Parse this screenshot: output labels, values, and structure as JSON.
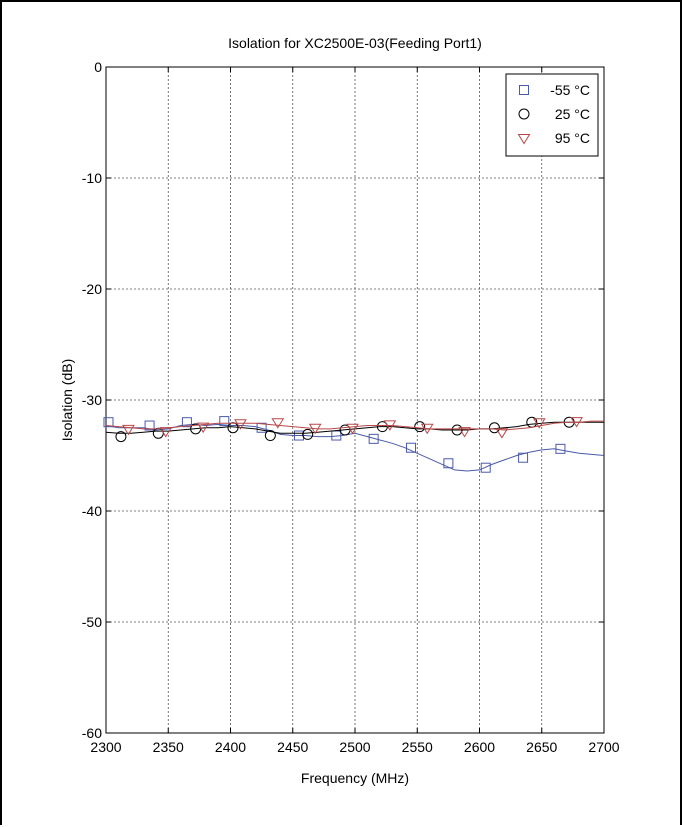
{
  "chart_data": {
    "type": "line",
    "title": "Isolation for XC2500E-03(Feeding Port1)",
    "xlabel": "Frequency (MHz)",
    "ylabel": "Isolation (dB)",
    "xlim": [
      2300,
      2700
    ],
    "ylim": [
      -60,
      0
    ],
    "xticks": [
      2300,
      2350,
      2400,
      2450,
      2500,
      2550,
      2600,
      2650,
      2700
    ],
    "yticks": [
      0,
      -10,
      -20,
      -30,
      -40,
      -50,
      -60
    ],
    "grid": true,
    "legend_position": "top-right",
    "series": [
      {
        "name": "-55 °C",
        "marker": "square",
        "color": "#4a5aa8",
        "line": {
          "x": [
            2300,
            2310,
            2320,
            2330,
            2340,
            2350,
            2360,
            2370,
            2380,
            2390,
            2400,
            2410,
            2420,
            2430,
            2440,
            2450,
            2460,
            2470,
            2480,
            2490,
            2500,
            2510,
            2520,
            2530,
            2540,
            2550,
            2560,
            2570,
            2580,
            2590,
            2600,
            2610,
            2620,
            2630,
            2640,
            2650,
            2660,
            2670,
            2680,
            2690,
            2700
          ],
          "y": [
            -32.3,
            -32.5,
            -32.5,
            -32.5,
            -32.7,
            -32.6,
            -32.3,
            -32.2,
            -32.3,
            -32.2,
            -32.3,
            -32.3,
            -32.4,
            -32.7,
            -33.1,
            -33.2,
            -33.2,
            -33.3,
            -33.3,
            -33.2,
            -33.0,
            -33.3,
            -33.6,
            -33.9,
            -34.3,
            -34.8,
            -35.3,
            -35.8,
            -36.3,
            -36.4,
            -36.3,
            -35.8,
            -35.4,
            -35.0,
            -34.7,
            -34.5,
            -34.4,
            -34.6,
            -34.8,
            -34.9,
            -35.0
          ]
        },
        "markers": {
          "x": [
            2302,
            2335,
            2365,
            2395,
            2425,
            2455,
            2485,
            2515,
            2545,
            2575,
            2605,
            2635,
            2665
          ],
          "y": [
            -32.0,
            -32.3,
            -32.0,
            -31.9,
            -32.5,
            -33.2,
            -33.2,
            -33.5,
            -34.3,
            -35.7,
            -36.1,
            -35.2,
            -34.4
          ]
        }
      },
      {
        "name": "25 °C",
        "marker": "circle",
        "color": "#000000",
        "line": {
          "x": [
            2300,
            2310,
            2320,
            2330,
            2340,
            2350,
            2360,
            2370,
            2380,
            2390,
            2400,
            2410,
            2420,
            2430,
            2440,
            2450,
            2460,
            2470,
            2480,
            2490,
            2500,
            2510,
            2520,
            2530,
            2540,
            2550,
            2560,
            2570,
            2580,
            2590,
            2600,
            2610,
            2620,
            2630,
            2640,
            2650,
            2660,
            2670,
            2680,
            2690,
            2700
          ],
          "y": [
            -32.9,
            -33.0,
            -33.0,
            -32.9,
            -32.8,
            -32.8,
            -32.7,
            -32.6,
            -32.5,
            -32.5,
            -32.4,
            -32.5,
            -32.6,
            -32.8,
            -33.0,
            -33.0,
            -33.0,
            -32.9,
            -32.8,
            -32.7,
            -32.6,
            -32.5,
            -32.4,
            -32.4,
            -32.5,
            -32.6,
            -32.6,
            -32.7,
            -32.7,
            -32.7,
            -32.6,
            -32.6,
            -32.5,
            -32.4,
            -32.2,
            -32.1,
            -32.0,
            -32.0,
            -32.0,
            -32.0,
            -32.0
          ]
        },
        "markers": {
          "x": [
            2312,
            2342,
            2372,
            2402,
            2432,
            2462,
            2492,
            2522,
            2552,
            2582,
            2612,
            2642,
            2672
          ],
          "y": [
            -33.3,
            -33.0,
            -32.6,
            -32.5,
            -33.2,
            -33.1,
            -32.7,
            -32.4,
            -32.4,
            -32.7,
            -32.5,
            -32.0,
            -32.0
          ]
        }
      },
      {
        "name": "95 °C",
        "marker": "triangle-down",
        "color": "#b84848",
        "line": {
          "x": [
            2300,
            2310,
            2320,
            2330,
            2340,
            2350,
            2360,
            2370,
            2380,
            2390,
            2400,
            2410,
            2420,
            2430,
            2440,
            2450,
            2460,
            2470,
            2480,
            2490,
            2500,
            2510,
            2520,
            2530,
            2540,
            2550,
            2560,
            2570,
            2580,
            2590,
            2600,
            2610,
            2620,
            2630,
            2640,
            2650,
            2660,
            2670,
            2680,
            2690,
            2700
          ],
          "y": [
            -32.3,
            -32.4,
            -32.5,
            -32.6,
            -32.6,
            -32.5,
            -32.4,
            -32.3,
            -32.2,
            -32.1,
            -32.1,
            -32.1,
            -32.1,
            -32.2,
            -32.3,
            -32.4,
            -32.5,
            -32.6,
            -32.6,
            -32.5,
            -32.4,
            -32.3,
            -32.3,
            -32.3,
            -32.4,
            -32.5,
            -32.6,
            -32.6,
            -32.6,
            -32.6,
            -32.6,
            -32.6,
            -32.7,
            -32.6,
            -32.5,
            -32.3,
            -32.1,
            -32.0,
            -32.0,
            -31.9,
            -31.9
          ]
        },
        "markers": {
          "x": [
            2318,
            2348,
            2378,
            2408,
            2438,
            2468,
            2498,
            2528,
            2558,
            2588,
            2618,
            2648,
            2678
          ],
          "y": [
            -32.6,
            -32.8,
            -32.4,
            -32.1,
            -32.0,
            -32.5,
            -32.5,
            -32.2,
            -32.5,
            -32.8,
            -32.9,
            -32.0,
            -31.9
          ]
        }
      }
    ]
  }
}
